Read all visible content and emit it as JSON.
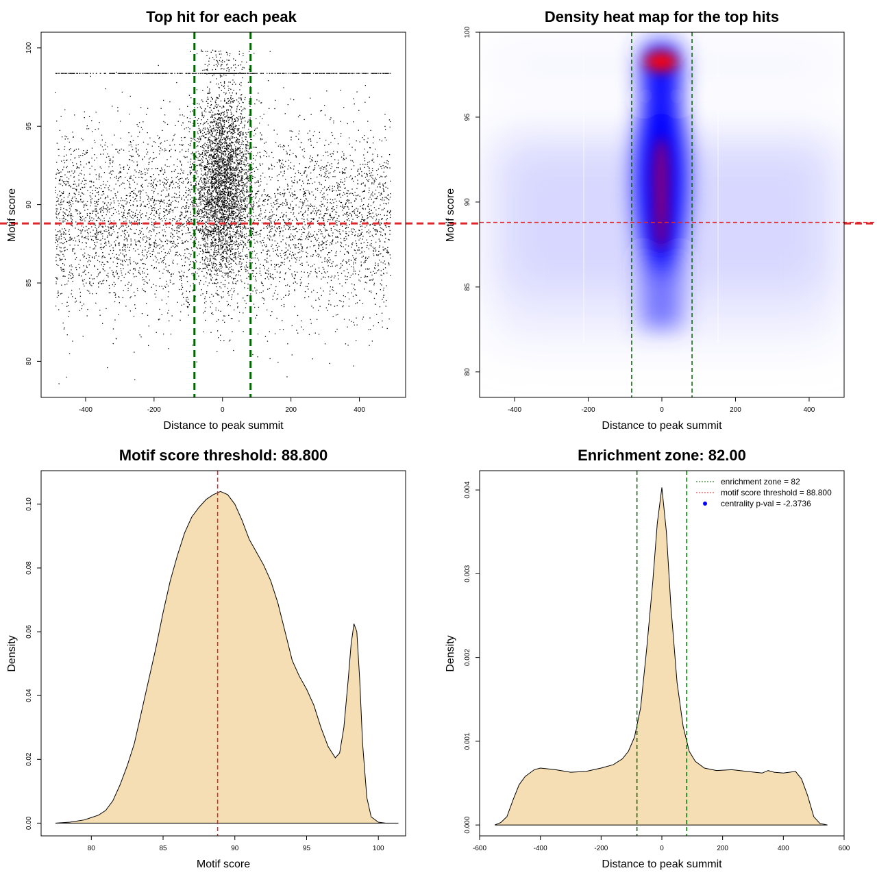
{
  "chart_data": [
    {
      "type": "scatter",
      "title": "Top hit for each peak",
      "xlabel": "Distance to peak summit",
      "ylabel": "Motif score",
      "xlim": [
        -530,
        535
      ],
      "ylim": [
        77.7,
        101.0
      ],
      "xticks": [
        -400,
        -200,
        0,
        200,
        400
      ],
      "yticks": [
        80,
        85,
        90,
        95,
        100
      ],
      "n_points_approx": 12000,
      "cluster_center_x": 0,
      "cluster_halfwidth_x": 40,
      "max_score_band_y": 98.4,
      "colors": {
        "points": "#000000",
        "enrichment_lines": "#006400",
        "threshold_line": "#e0262b"
      },
      "reference_lines": {
        "vertical_x": [
          -82,
          82
        ],
        "horizontal_y": 88.8
      }
    },
    {
      "type": "heatmap",
      "title": "Density heat map for the top hits",
      "xlabel": "Distance to peak summit",
      "ylabel": "Motif score",
      "xlim": [
        -495,
        495
      ],
      "ylim": [
        78.5,
        100.0
      ],
      "xticks": [
        -400,
        -200,
        0,
        200,
        400
      ],
      "yticks": [
        80,
        85,
        90,
        95,
        100
      ],
      "color_ramp": [
        "#ffffff",
        "#0000ff",
        "#ff0000"
      ],
      "hotspots": [
        {
          "x": 0,
          "y": 98.3,
          "intensity": 1.0
        },
        {
          "x": 0,
          "y": 91.5,
          "intensity": 0.75
        },
        {
          "x": 0,
          "y": 89.0,
          "intensity": 0.7
        }
      ],
      "reference_lines": {
        "vertical_x": [
          -82,
          82
        ],
        "horizontal_y": 88.8
      }
    },
    {
      "type": "area",
      "title": "Motif score threshold: 88.800",
      "xlabel": "Motif score",
      "ylabel": "Density",
      "xlim": [
        76.5,
        101.9
      ],
      "ylim": [
        -0.004,
        0.1105
      ],
      "xticks": [
        80,
        85,
        90,
        95,
        100
      ],
      "yticks": [
        0.0,
        0.02,
        0.04,
        0.06,
        0.08,
        0.1
      ],
      "ytick_labels": [
        "0.00",
        "0.02",
        "0.04",
        "0.06",
        "0.08",
        "0.10"
      ],
      "fill_color": "#f5deb3",
      "threshold_line": {
        "x": 88.8,
        "color": "#e0262b"
      },
      "x": [
        77.5,
        78.5,
        79.5,
        80.5,
        81.0,
        81.5,
        82.0,
        82.5,
        83.0,
        83.5,
        84.0,
        84.5,
        85.0,
        85.5,
        86.0,
        86.5,
        87.0,
        87.5,
        88.0,
        88.5,
        89.0,
        89.5,
        90.0,
        90.5,
        91.0,
        91.5,
        92.0,
        92.5,
        93.0,
        93.5,
        94.0,
        94.5,
        95.0,
        95.5,
        96.0,
        96.5,
        97.0,
        97.3,
        97.6,
        97.9,
        98.1,
        98.3,
        98.5,
        98.7,
        98.9,
        99.2,
        99.5,
        100.0,
        100.5,
        101.4
      ],
      "y": [
        0.0,
        0.0003,
        0.001,
        0.0025,
        0.004,
        0.007,
        0.012,
        0.018,
        0.025,
        0.035,
        0.045,
        0.055,
        0.066,
        0.076,
        0.084,
        0.091,
        0.096,
        0.099,
        0.1015,
        0.103,
        0.104,
        0.103,
        0.1,
        0.095,
        0.089,
        0.085,
        0.081,
        0.076,
        0.069,
        0.06,
        0.051,
        0.046,
        0.042,
        0.037,
        0.03,
        0.024,
        0.0205,
        0.022,
        0.03,
        0.045,
        0.056,
        0.0625,
        0.06,
        0.045,
        0.025,
        0.008,
        0.002,
        0.0003,
        0.0,
        0.0
      ]
    },
    {
      "type": "area",
      "title": "Enrichment zone: 82.00",
      "xlabel": "Distance to peak summit",
      "ylabel": "Density",
      "xlim": [
        -600,
        600
      ],
      "ylim": [
        -0.00013,
        0.00423
      ],
      "xticks": [
        -600,
        -400,
        -200,
        0,
        200,
        400,
        600
      ],
      "yticks": [
        0.0,
        0.001,
        0.002,
        0.003,
        0.004
      ],
      "ytick_labels": [
        "0.000",
        "0.001",
        "0.002",
        "0.003",
        "0.004"
      ],
      "fill_color": "#f5deb3",
      "enrichment_lines": {
        "x": [
          -82,
          82
        ],
        "color": "#006400"
      },
      "x": [
        -550,
        -530,
        -510,
        -490,
        -470,
        -450,
        -420,
        -400,
        -350,
        -300,
        -250,
        -200,
        -160,
        -130,
        -110,
        -90,
        -70,
        -50,
        -30,
        -15,
        0,
        15,
        30,
        50,
        70,
        90,
        110,
        140,
        180,
        230,
        280,
        330,
        350,
        370,
        400,
        440,
        460,
        480,
        500,
        520,
        545
      ],
      "y": [
        0.0,
        3e-05,
        0.0001,
        0.0003,
        0.00048,
        0.00058,
        0.00066,
        0.00068,
        0.00066,
        0.00063,
        0.00064,
        0.00068,
        0.00072,
        0.00079,
        0.00088,
        0.00105,
        0.0014,
        0.0021,
        0.0029,
        0.0036,
        0.00403,
        0.0035,
        0.0026,
        0.0017,
        0.00118,
        0.00088,
        0.00076,
        0.00068,
        0.00065,
        0.00066,
        0.00064,
        0.00062,
        0.00065,
        0.00063,
        0.00062,
        0.00064,
        0.00055,
        0.00035,
        0.0001,
        2e-05,
        0.0
      ],
      "legend": [
        {
          "label": "enrichment zone = 82",
          "color": "#006400",
          "symbol": "dotted-line"
        },
        {
          "label": "motif score threshold = 88.800",
          "color": "#e0262b",
          "symbol": "dotted-line"
        },
        {
          "label": "centrality p-val = -2.3736",
          "color": "#0000ff",
          "symbol": "dot"
        }
      ],
      "legend_position": "top-right"
    }
  ]
}
